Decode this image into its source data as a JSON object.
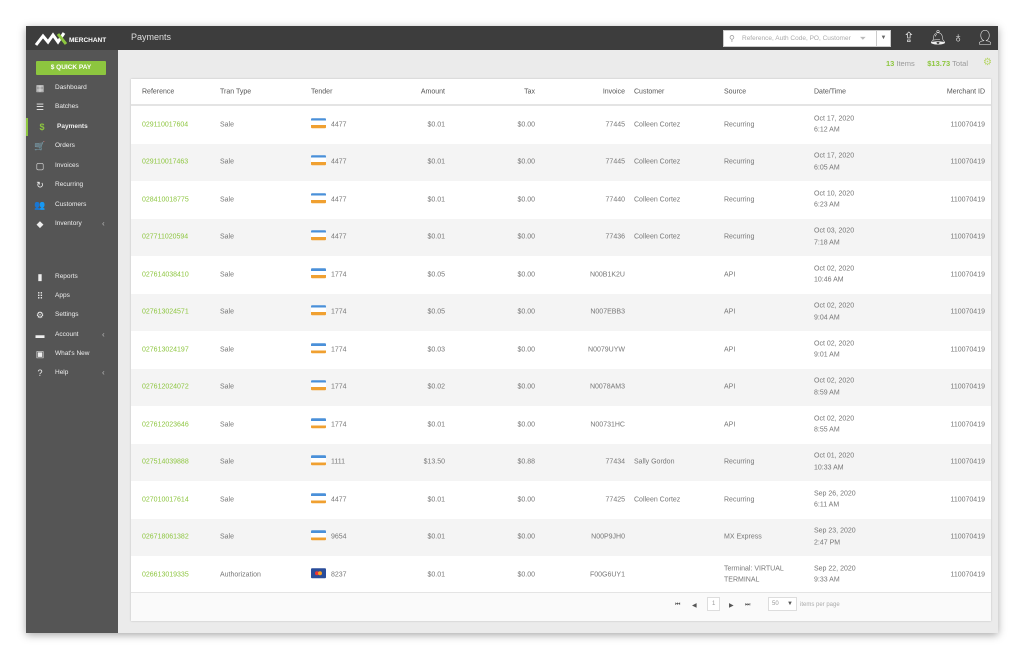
{
  "app": {
    "brand": "MERCHANT",
    "title": "Payments"
  },
  "search": {
    "placeholder": "Reference, Auth Code, PO, Customer"
  },
  "toolbar_icons": [
    "share-icon",
    "bell-icon",
    "lightbulb-icon",
    "user-icon"
  ],
  "sidebar": {
    "quick_pay": "$ QUICK PAY",
    "items": [
      {
        "label": "Dashboard",
        "icon": "dashboard-icon",
        "glyph": "▦"
      },
      {
        "label": "Batches",
        "icon": "list-icon",
        "glyph": "☰"
      },
      {
        "label": "Payments",
        "icon": "dollar-icon",
        "glyph": "$",
        "active": true
      },
      {
        "label": "Orders",
        "icon": "cart-icon",
        "glyph": "🛒"
      },
      {
        "label": "Invoices",
        "icon": "clipboard-icon",
        "glyph": "▢"
      },
      {
        "label": "Recurring",
        "icon": "refresh-icon",
        "glyph": "↻"
      },
      {
        "label": "Customers",
        "icon": "people-icon",
        "glyph": "👥"
      },
      {
        "label": "Inventory",
        "icon": "tag-icon",
        "glyph": "◆",
        "chevron": true
      },
      {
        "label": "Reports",
        "icon": "bar-chart-icon",
        "glyph": "▮"
      },
      {
        "label": "Apps",
        "icon": "grid-icon",
        "glyph": "⠿"
      },
      {
        "label": "Settings",
        "icon": "gear-icon",
        "glyph": "⚙"
      },
      {
        "label": "Account",
        "icon": "store-icon",
        "glyph": "▬",
        "chevron": true
      },
      {
        "label": "What's New",
        "icon": "gift-icon",
        "glyph": "▣"
      },
      {
        "label": "Help",
        "icon": "help-icon",
        "glyph": "?",
        "chevron": true
      }
    ]
  },
  "summary": {
    "items_count": "13",
    "items_label": "Items",
    "total": "$13.73",
    "total_label": "Total"
  },
  "accent": "#8dc63f",
  "table": {
    "headers": [
      "Reference",
      "Tran Type",
      "Tender",
      "Amount",
      "Tax",
      "Invoice",
      "Customer",
      "Source",
      "Date/Time",
      "Merchant ID"
    ],
    "rows": [
      {
        "ref": "029110017604",
        "type": "Sale",
        "card": "visa",
        "last4": "4477",
        "amount": "$0.01",
        "tax": "$0.00",
        "invoice": "77445",
        "customer": "Colleen Cortez",
        "source": "Recurring",
        "date": "Oct 17, 2020",
        "time": "6:12 AM",
        "mid": "110070419"
      },
      {
        "ref": "029110017463",
        "type": "Sale",
        "card": "visa",
        "last4": "4477",
        "amount": "$0.01",
        "tax": "$0.00",
        "invoice": "77445",
        "customer": "Colleen Cortez",
        "source": "Recurring",
        "date": "Oct 17, 2020",
        "time": "6:05 AM",
        "mid": "110070419"
      },
      {
        "ref": "028410018775",
        "type": "Sale",
        "card": "visa",
        "last4": "4477",
        "amount": "$0.01",
        "tax": "$0.00",
        "invoice": "77440",
        "customer": "Colleen Cortez",
        "source": "Recurring",
        "date": "Oct 10, 2020",
        "time": "6:23 AM",
        "mid": "110070419"
      },
      {
        "ref": "027711020594",
        "type": "Sale",
        "card": "visa",
        "last4": "4477",
        "amount": "$0.01",
        "tax": "$0.00",
        "invoice": "77436",
        "customer": "Colleen Cortez",
        "source": "Recurring",
        "date": "Oct 03, 2020",
        "time": "7:18 AM",
        "mid": "110070419"
      },
      {
        "ref": "027614038410",
        "type": "Sale",
        "card": "visa",
        "last4": "1774",
        "amount": "$0.05",
        "tax": "$0.00",
        "invoice": "N00B1K2U",
        "customer": "",
        "source": "API",
        "date": "Oct 02, 2020",
        "time": "10:46 AM",
        "mid": "110070419"
      },
      {
        "ref": "027613024571",
        "type": "Sale",
        "card": "visa",
        "last4": "1774",
        "amount": "$0.05",
        "tax": "$0.00",
        "invoice": "N007EBB3",
        "customer": "",
        "source": "API",
        "date": "Oct 02, 2020",
        "time": "9:04 AM",
        "mid": "110070419"
      },
      {
        "ref": "027613024197",
        "type": "Sale",
        "card": "visa",
        "last4": "1774",
        "amount": "$0.03",
        "tax": "$0.00",
        "invoice": "N0079UYW",
        "customer": "",
        "source": "API",
        "date": "Oct 02, 2020",
        "time": "9:01 AM",
        "mid": "110070419"
      },
      {
        "ref": "027612024072",
        "type": "Sale",
        "card": "visa",
        "last4": "1774",
        "amount": "$0.02",
        "tax": "$0.00",
        "invoice": "N0078AM3",
        "customer": "",
        "source": "API",
        "date": "Oct 02, 2020",
        "time": "8:59 AM",
        "mid": "110070419"
      },
      {
        "ref": "027612023646",
        "type": "Sale",
        "card": "visa",
        "last4": "1774",
        "amount": "$0.01",
        "tax": "$0.00",
        "invoice": "N00731HC",
        "customer": "",
        "source": "API",
        "date": "Oct 02, 2020",
        "time": "8:55 AM",
        "mid": "110070419"
      },
      {
        "ref": "027514039888",
        "type": "Sale",
        "card": "visa",
        "last4": "1111",
        "amount": "$13.50",
        "tax": "$0.88",
        "invoice": "77434",
        "customer": "Sally Gordon",
        "source": "Recurring",
        "date": "Oct 01, 2020",
        "time": "10:33 AM",
        "mid": "110070419"
      },
      {
        "ref": "027010017614",
        "type": "Sale",
        "card": "visa",
        "last4": "4477",
        "amount": "$0.01",
        "tax": "$0.00",
        "invoice": "77425",
        "customer": "Colleen Cortez",
        "source": "Recurring",
        "date": "Sep 26, 2020",
        "time": "6:11 AM",
        "mid": "110070419"
      },
      {
        "ref": "026718061382",
        "type": "Sale",
        "card": "visa",
        "last4": "9654",
        "amount": "$0.01",
        "tax": "$0.00",
        "invoice": "N00P9JH0",
        "customer": "",
        "source": "MX Express",
        "date": "Sep 23, 2020",
        "time": "2:47 PM",
        "mid": "110070419"
      },
      {
        "ref": "026613019335",
        "type": "Authorization",
        "card": "mastercard",
        "last4": "8237",
        "amount": "$0.01",
        "tax": "$0.00",
        "invoice": "F00G6UY1",
        "customer": "",
        "source": "Terminal: VIRTUAL TERMINAL",
        "date": "Sep 22, 2020",
        "time": "9:33 AM",
        "mid": "110070419"
      }
    ]
  },
  "pager": {
    "page": "1",
    "page_size": "50",
    "per_page_label": "items per page"
  }
}
